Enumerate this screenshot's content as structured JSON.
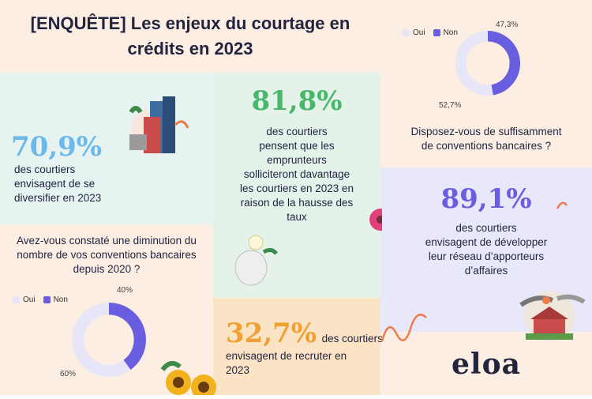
{
  "header": {
    "title_line1": "[ENQUÊTE] Les enjeux du courtage en",
    "title_line2": "crédits en 2023"
  },
  "stat_diversify": {
    "value": "70,9%",
    "text_line1": "des courtiers",
    "text_line2": "envisagent de se",
    "text_line3": "diversifier en 2023"
  },
  "stat_brokers_more": {
    "value": "81,8%",
    "lines": [
      "des courtiers",
      "pensent que les",
      "emprunteurs",
      "solliciteront davantage",
      "les courtiers en 2023 en",
      "raison de la hausse des",
      "taux"
    ]
  },
  "stat_recruit": {
    "value": "32,7%",
    "text_inline": "des courtiers",
    "text_line2": "envisagent de recruter en",
    "text_line3": "2023"
  },
  "stat_network": {
    "value": "89,1%",
    "lines": [
      "des courtiers",
      "envisagent de développer",
      "leur réseau d’apporteurs",
      "d’affaires"
    ]
  },
  "question_sufficient": {
    "lines": [
      "Disposez-vous de suffisamment",
      "de conventions bancaires ?"
    ]
  },
  "question_decrease": {
    "lines": [
      "Avez-vous constaté une diminution du",
      "nombre de vos conventions bancaires",
      "depuis 2020 ?"
    ]
  },
  "brand": {
    "logo_text": "eloa"
  },
  "colors": {
    "oui": "#e6e6f8",
    "non": "#6a5ee0",
    "teal": "#3fa9a0",
    "blue": "#6cb8ea",
    "green": "#47b86a",
    "orange": "#f0a030",
    "purple": "#6a5ee0"
  },
  "chart_data": [
    {
      "type": "pie",
      "subtype": "donut",
      "title": "Disposez-vous de suffisamment de conventions bancaires ?",
      "categories": [
        "Oui",
        "Non"
      ],
      "values": [
        52.7,
        47.3
      ],
      "labels": [
        "52,7%",
        "47,3%"
      ],
      "legend": "top-left"
    },
    {
      "type": "pie",
      "subtype": "donut",
      "title": "Avez-vous constaté une diminution du nombre de vos conventions bancaires depuis 2020 ?",
      "categories": [
        "Oui",
        "Non"
      ],
      "values": [
        60,
        40
      ],
      "labels": [
        "60%",
        "40%"
      ],
      "legend": "top-left"
    }
  ]
}
